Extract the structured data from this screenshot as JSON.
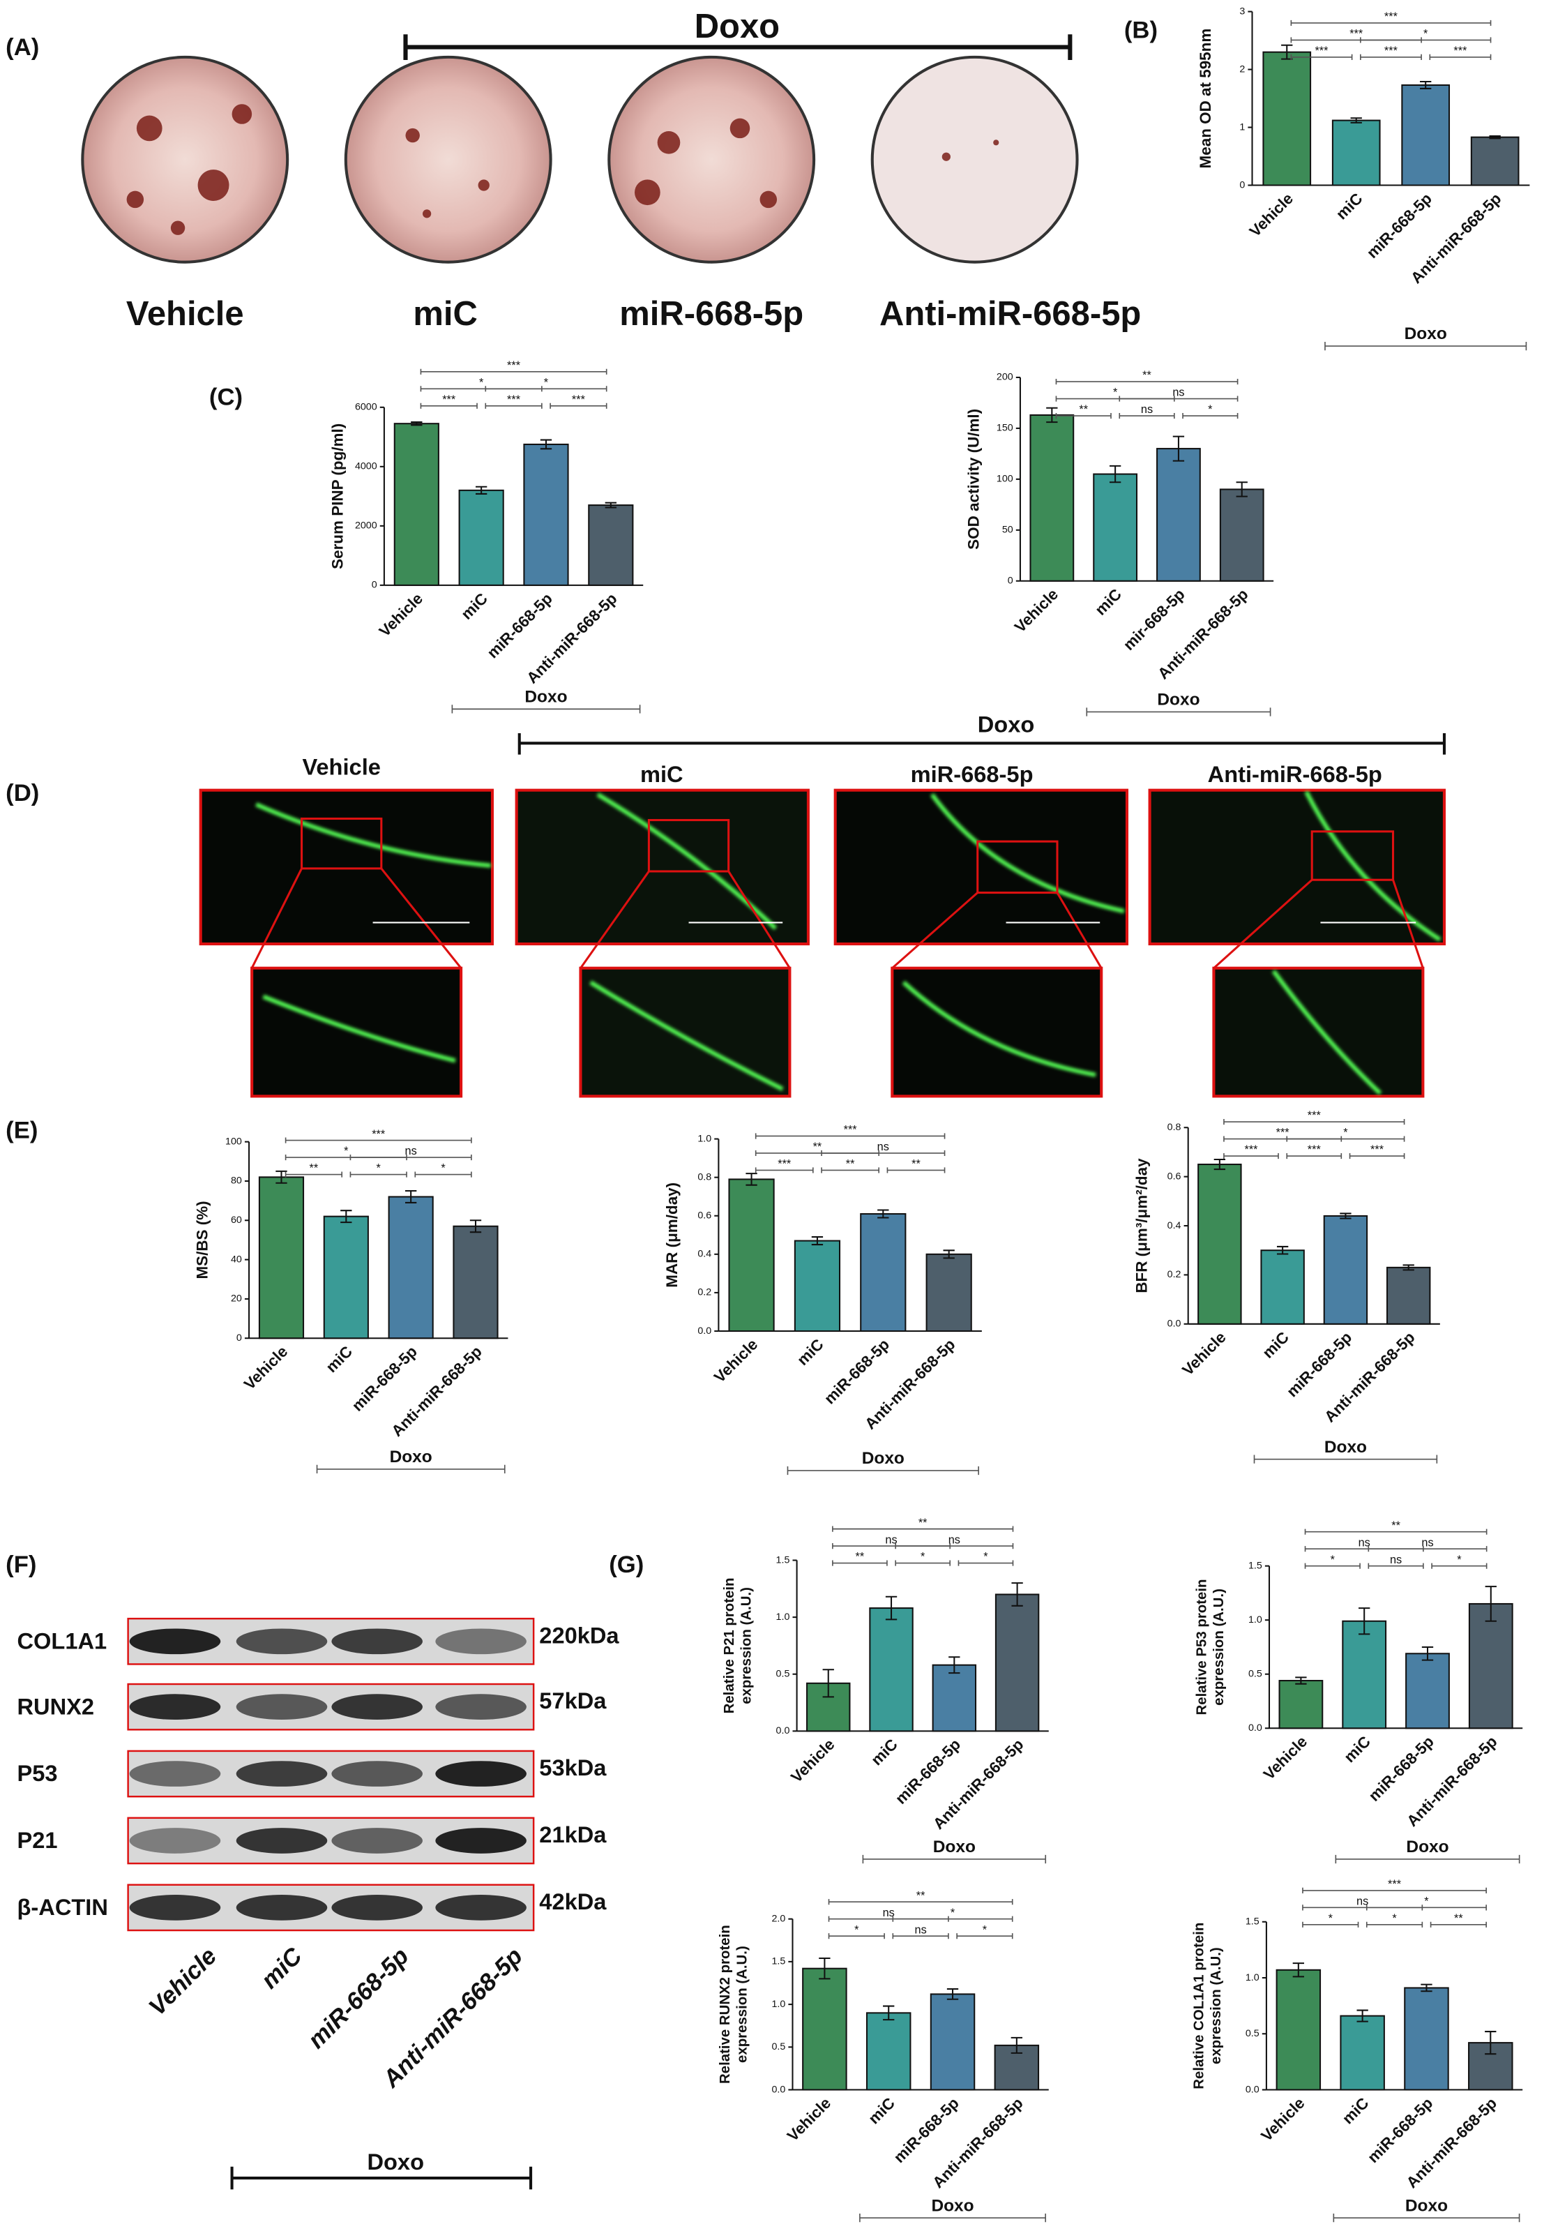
{
  "labels": {
    "panels": [
      "(A)",
      "(B)",
      "(C)",
      "(D)",
      "(E)",
      "(F)",
      "(G)"
    ],
    "panel_a": {
      "group": "Doxo",
      "samples": [
        "Vehicle",
        "miC",
        "miR-668-5p",
        "Anti-miR-668-5p"
      ]
    },
    "panel_d": {
      "group": "Doxo",
      "samples": [
        "Vehicle",
        "miC",
        "miR-668-5p",
        "Anti-miR-668-5p"
      ]
    },
    "panel_f": {
      "group": "Doxo",
      "samples": [
        "Vehicle",
        "miC",
        "miR-668-5p",
        "Anti-miR-668-5p"
      ],
      "proteins": [
        {
          "name": "COL1A1",
          "size": "220kDa"
        },
        {
          "name": "RUNX2",
          "size": "57kDa"
        },
        {
          "name": "P53",
          "size": "53kDa"
        },
        {
          "name": "P21",
          "size": "21kDa"
        },
        {
          "name": "β-ACTIN",
          "size": "42kDa"
        }
      ]
    }
  },
  "chart_data": [
    {
      "type": "bar",
      "ylabel": "Mean OD at 595nm",
      "categories": [
        "Vehicle",
        "miC",
        "miR-668-5p",
        "Anti-miR-668-5p"
      ],
      "values": [
        2.3,
        1.12,
        1.73,
        0.83
      ],
      "errors": [
        0.12,
        0.04,
        0.06,
        0.02
      ],
      "colors": [
        "#3d8b57",
        "#3a9b96",
        "#4a7fa3",
        "#4e5f6b"
      ],
      "ylim": [
        0,
        3
      ],
      "yticks": [
        0,
        1,
        2,
        3
      ],
      "group_label": "Doxo",
      "comparisons": [
        {
          "pair": [
            0,
            3
          ],
          "label": "***"
        },
        {
          "pair": [
            0,
            2
          ],
          "label": "***"
        },
        {
          "pair": [
            1,
            3
          ],
          "label": "*"
        },
        {
          "pair": [
            0,
            1
          ],
          "label": "***"
        },
        {
          "pair": [
            1,
            2
          ],
          "label": "***"
        },
        {
          "pair": [
            2,
            3
          ],
          "label": "***"
        }
      ]
    },
    {
      "type": "bar",
      "ylabel": "Serum PINP (pg/ml)",
      "categories": [
        "Vehicle",
        "miC",
        "miR-668-5p",
        "Anti-miR-668-5p"
      ],
      "values": [
        5450,
        3200,
        4750,
        2700
      ],
      "errors": [
        50,
        120,
        150,
        80
      ],
      "colors": [
        "#3d8b57",
        "#3a9b96",
        "#4a7fa3",
        "#4e5f6b"
      ],
      "ylim": [
        0,
        6000
      ],
      "yticks": [
        0,
        2000,
        4000,
        6000
      ],
      "group_label": "Doxo",
      "comparisons": [
        {
          "pair": [
            0,
            3
          ],
          "label": "***"
        },
        {
          "pair": [
            0,
            2
          ],
          "label": "*"
        },
        {
          "pair": [
            1,
            3
          ],
          "label": "*"
        },
        {
          "pair": [
            0,
            1
          ],
          "label": "***"
        },
        {
          "pair": [
            1,
            2
          ],
          "label": "***"
        },
        {
          "pair": [
            2,
            3
          ],
          "label": "***"
        }
      ]
    },
    {
      "type": "bar",
      "ylabel": "SOD activity (U/ml)",
      "categories": [
        "Vehicle",
        "miC",
        "mir-668-5p",
        "Anti-miR-668-5p"
      ],
      "values": [
        163,
        105,
        130,
        90
      ],
      "errors": [
        7,
        8,
        12,
        7
      ],
      "colors": [
        "#3d8b57",
        "#3a9b96",
        "#4a7fa3",
        "#4e5f6b"
      ],
      "ylim": [
        0,
        200
      ],
      "yticks": [
        0,
        50,
        100,
        150,
        200
      ],
      "group_label": "Doxo",
      "comparisons": [
        {
          "pair": [
            0,
            3
          ],
          "label": "**"
        },
        {
          "pair": [
            0,
            2
          ],
          "label": "*"
        },
        {
          "pair": [
            1,
            3
          ],
          "label": "ns"
        },
        {
          "pair": [
            0,
            1
          ],
          "label": "**"
        },
        {
          "pair": [
            1,
            2
          ],
          "label": "ns"
        },
        {
          "pair": [
            2,
            3
          ],
          "label": "*"
        }
      ]
    },
    {
      "type": "bar",
      "ylabel": "MS/BS (%)",
      "categories": [
        "Vehicle",
        "miC",
        "miR-668-5p",
        "Anti-miR-668-5p"
      ],
      "values": [
        82,
        62,
        72,
        57
      ],
      "errors": [
        3,
        3,
        3,
        3
      ],
      "colors": [
        "#3d8b57",
        "#3a9b96",
        "#4a7fa3",
        "#4e5f6b"
      ],
      "ylim": [
        0,
        100
      ],
      "yticks": [
        0,
        20,
        40,
        60,
        80,
        100
      ],
      "group_label": "Doxo",
      "comparisons": [
        {
          "pair": [
            0,
            3
          ],
          "label": "***"
        },
        {
          "pair": [
            0,
            2
          ],
          "label": "*"
        },
        {
          "pair": [
            1,
            3
          ],
          "label": "ns"
        },
        {
          "pair": [
            0,
            1
          ],
          "label": "**"
        },
        {
          "pair": [
            1,
            2
          ],
          "label": "*"
        },
        {
          "pair": [
            2,
            3
          ],
          "label": "*"
        }
      ]
    },
    {
      "type": "bar",
      "ylabel": "MAR (μm/day)",
      "categories": [
        "Vehicle",
        "miC",
        "miR-668-5p",
        "Anti-miR-668-5p"
      ],
      "values": [
        0.79,
        0.47,
        0.61,
        0.4
      ],
      "errors": [
        0.03,
        0.02,
        0.02,
        0.02
      ],
      "colors": [
        "#3d8b57",
        "#3a9b96",
        "#4a7fa3",
        "#4e5f6b"
      ],
      "ylim": [
        0,
        1
      ],
      "yticks": [
        {
          "value": 0,
          "label": "0.0"
        },
        0.2,
        0.4,
        0.6,
        0.8,
        {
          "value": 1,
          "label": "1.0"
        }
      ],
      "group_label": "Doxo",
      "comparisons": [
        {
          "pair": [
            0,
            3
          ],
          "label": "***"
        },
        {
          "pair": [
            0,
            2
          ],
          "label": "**"
        },
        {
          "pair": [
            1,
            3
          ],
          "label": "ns"
        },
        {
          "pair": [
            0,
            1
          ],
          "label": "***"
        },
        {
          "pair": [
            1,
            2
          ],
          "label": "**"
        },
        {
          "pair": [
            2,
            3
          ],
          "label": "**"
        }
      ]
    },
    {
      "type": "bar",
      "ylabel": "BFR (μm³/μm²/day",
      "categories": [
        "Vehicle",
        "miC",
        "miR-668-5p",
        "Anti-miR-668-5p"
      ],
      "values": [
        0.65,
        0.3,
        0.44,
        0.23
      ],
      "errors": [
        0.02,
        0.015,
        0.01,
        0.01
      ],
      "colors": [
        "#3d8b57",
        "#3a9b96",
        "#4a7fa3",
        "#4e5f6b"
      ],
      "ylim": [
        0,
        0.8
      ],
      "yticks": [
        {
          "value": 0,
          "label": "0.0"
        },
        0.2,
        0.4,
        0.6,
        0.8
      ],
      "group_label": "Doxo",
      "comparisons": [
        {
          "pair": [
            0,
            3
          ],
          "label": "***"
        },
        {
          "pair": [
            0,
            2
          ],
          "label": "***"
        },
        {
          "pair": [
            1,
            3
          ],
          "label": "*"
        },
        {
          "pair": [
            0,
            1
          ],
          "label": "***"
        },
        {
          "pair": [
            1,
            2
          ],
          "label": "***"
        },
        {
          "pair": [
            2,
            3
          ],
          "label": "***"
        }
      ]
    },
    {
      "type": "bar",
      "ylabel": [
        "Relative P21  protein",
        "expression (A.U.)"
      ],
      "categories": [
        "Vehicle",
        "miC",
        "miR-668-5p",
        "Anti-miR-668-5p"
      ],
      "values": [
        0.42,
        1.08,
        0.58,
        1.2
      ],
      "errors": [
        0.12,
        0.1,
        0.07,
        0.1
      ],
      "colors": [
        "#3d8b57",
        "#3a9b96",
        "#4a7fa3",
        "#4e5f6b"
      ],
      "ylim": [
        0,
        1.5
      ],
      "yticks": [
        {
          "value": 0,
          "label": "0.0"
        },
        0.5,
        {
          "value": 1,
          "label": "1.0"
        },
        1.5
      ],
      "group_label": "Doxo",
      "comparisons": [
        {
          "pair": [
            0,
            3
          ],
          "label": "**"
        },
        {
          "pair": [
            0,
            2
          ],
          "label": "ns"
        },
        {
          "pair": [
            1,
            3
          ],
          "label": "ns"
        },
        {
          "pair": [
            0,
            1
          ],
          "label": "**"
        },
        {
          "pair": [
            1,
            2
          ],
          "label": "*"
        },
        {
          "pair": [
            2,
            3
          ],
          "label": "*"
        }
      ]
    },
    {
      "type": "bar",
      "ylabel": [
        "Relative P53  protein",
        "expression (A.U.)"
      ],
      "categories": [
        "Vehicle",
        "miC",
        "miR-668-5p",
        "Anti-miR-668-5p"
      ],
      "values": [
        0.44,
        0.99,
        0.69,
        1.15
      ],
      "errors": [
        0.03,
        0.12,
        0.06,
        0.16
      ],
      "colors": [
        "#3d8b57",
        "#3a9b96",
        "#4a7fa3",
        "#4e5f6b"
      ],
      "ylim": [
        0,
        1.5
      ],
      "yticks": [
        {
          "value": 0,
          "label": "0.0"
        },
        0.5,
        {
          "value": 1,
          "label": "1.0"
        },
        1.5
      ],
      "group_label": "Doxo",
      "comparisons": [
        {
          "pair": [
            0,
            3
          ],
          "label": "**"
        },
        {
          "pair": [
            0,
            2
          ],
          "label": "ns"
        },
        {
          "pair": [
            1,
            3
          ],
          "label": "ns"
        },
        {
          "pair": [
            0,
            1
          ],
          "label": "*"
        },
        {
          "pair": [
            1,
            2
          ],
          "label": "ns"
        },
        {
          "pair": [
            2,
            3
          ],
          "label": "*"
        }
      ]
    },
    {
      "type": "bar",
      "ylabel": [
        "Relative RUNX2 protein",
        "expression (A.U.)"
      ],
      "categories": [
        "Vehicle",
        "miC",
        "miR-668-5p",
        "Anti-miR-668-5p"
      ],
      "values": [
        1.42,
        0.9,
        1.12,
        0.52
      ],
      "errors": [
        0.12,
        0.08,
        0.06,
        0.09
      ],
      "colors": [
        "#3d8b57",
        "#3a9b96",
        "#4a7fa3",
        "#4e5f6b"
      ],
      "ylim": [
        0,
        2
      ],
      "yticks": [
        {
          "value": 0,
          "label": "0.0"
        },
        0.5,
        {
          "value": 1,
          "label": "1.0"
        },
        1.5,
        {
          "value": 2,
          "label": "2.0"
        }
      ],
      "group_label": "Doxo",
      "comparisons": [
        {
          "pair": [
            0,
            3
          ],
          "label": "**"
        },
        {
          "pair": [
            0,
            2
          ],
          "label": "ns"
        },
        {
          "pair": [
            1,
            3
          ],
          "label": "*"
        },
        {
          "pair": [
            0,
            1
          ],
          "label": "*"
        },
        {
          "pair": [
            1,
            2
          ],
          "label": "ns"
        },
        {
          "pair": [
            2,
            3
          ],
          "label": "*"
        }
      ]
    },
    {
      "type": "bar",
      "ylabel": [
        "Relative COL1A1 protein",
        "expression (A.U.)"
      ],
      "categories": [
        "Vehicle",
        "miC",
        "miR-668-5p",
        "Anti-miR-668-5p"
      ],
      "values": [
        1.07,
        0.66,
        0.91,
        0.42
      ],
      "errors": [
        0.06,
        0.05,
        0.03,
        0.1
      ],
      "colors": [
        "#3d8b57",
        "#3a9b96",
        "#4a7fa3",
        "#4e5f6b"
      ],
      "ylim": [
        0,
        1.5
      ],
      "yticks": [
        {
          "value": 0,
          "label": "0.0"
        },
        0.5,
        {
          "value": 1,
          "label": "1.0"
        },
        1.5
      ],
      "group_label": "Doxo",
      "comparisons": [
        {
          "pair": [
            0,
            3
          ],
          "label": "***"
        },
        {
          "pair": [
            0,
            2
          ],
          "label": "ns"
        },
        {
          "pair": [
            1,
            3
          ],
          "label": "*"
        },
        {
          "pair": [
            0,
            1
          ],
          "label": "*"
        },
        {
          "pair": [
            1,
            2
          ],
          "label": "*"
        },
        {
          "pair": [
            2,
            3
          ],
          "label": "**"
        }
      ]
    }
  ]
}
